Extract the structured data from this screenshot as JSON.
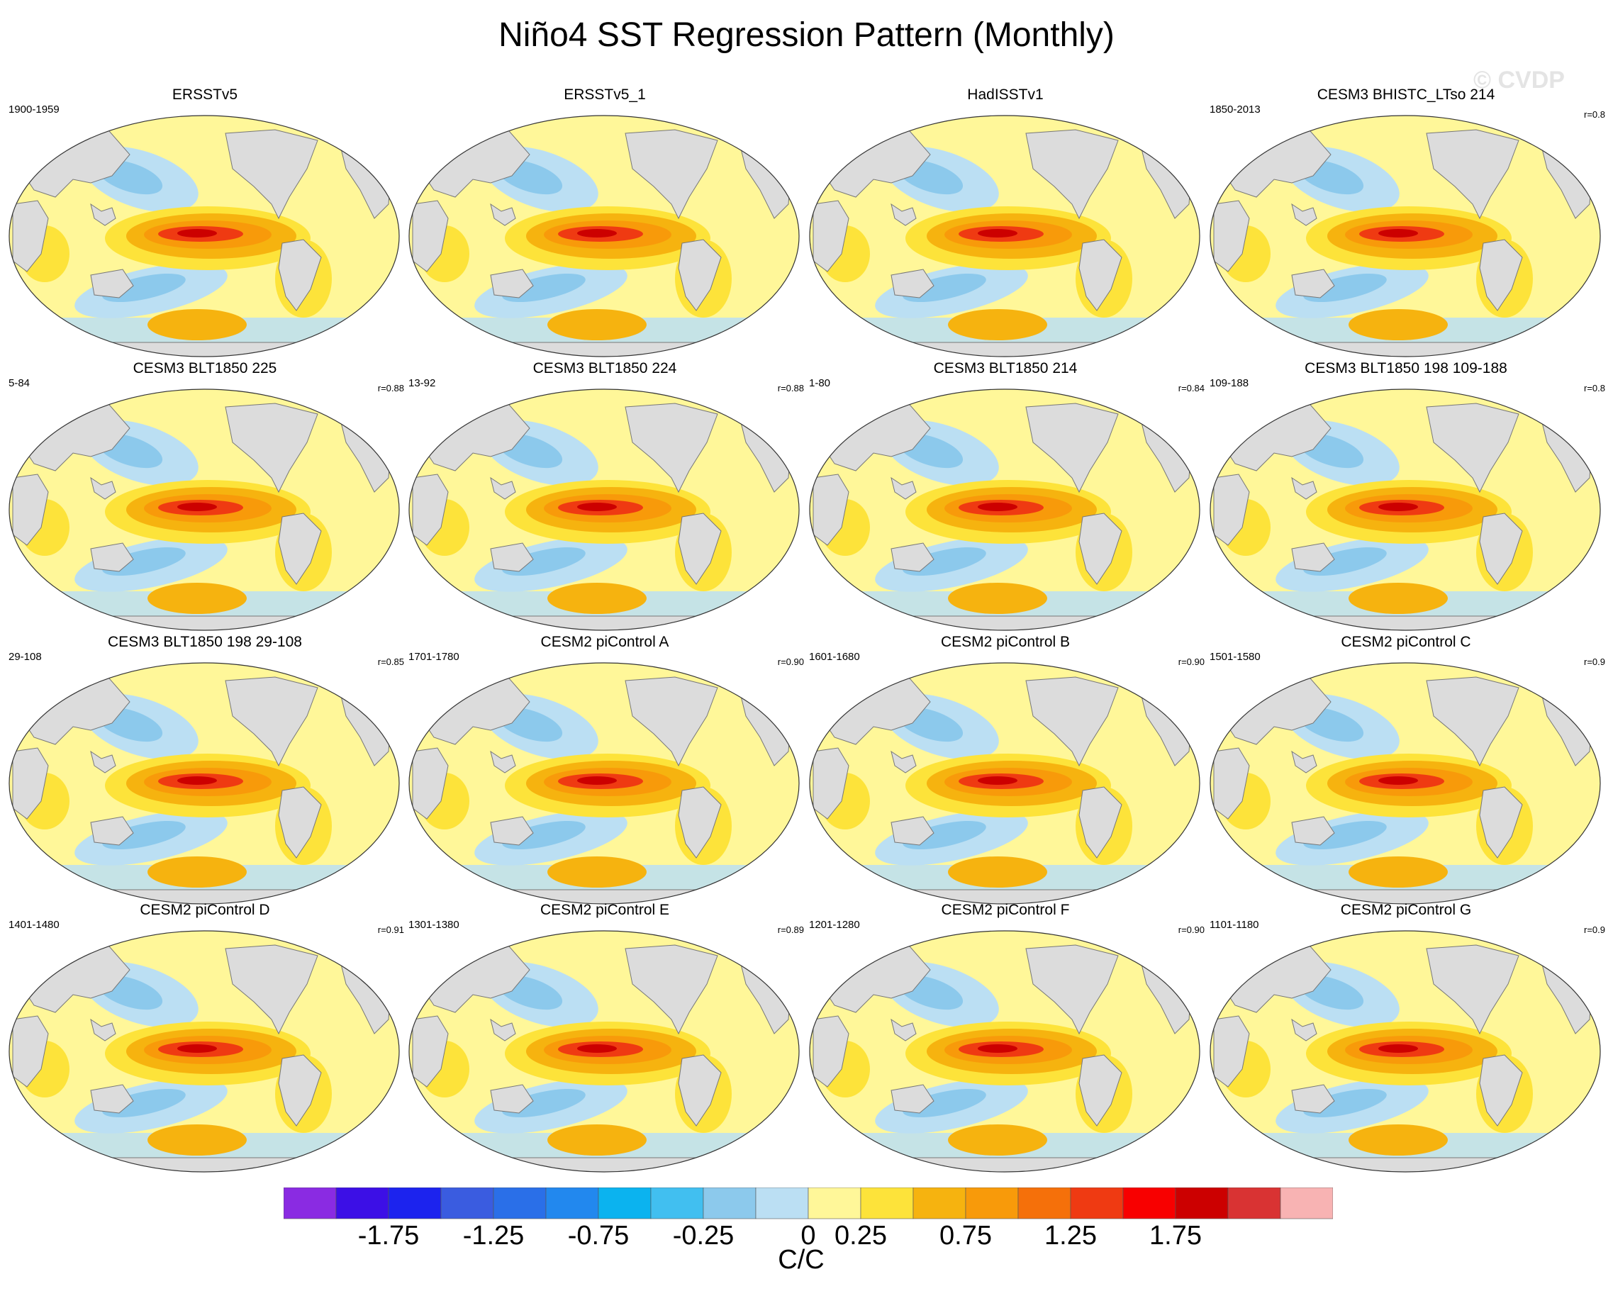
{
  "title": "Niño4 SST Regression Pattern (Monthly)",
  "watermark": "© CVDP",
  "chart_data": {
    "type": "heatmap",
    "projection": "Robinson global map, Pacific-centered",
    "variable": "SST regression onto Niño4 index",
    "units": "C/C",
    "panels": [
      {
        "title": "ERSSTv5",
        "period": "1900-1959",
        "r": ""
      },
      {
        "title": "ERSSTv5_1",
        "period": "",
        "r": ""
      },
      {
        "title": "HadISSTv1",
        "period": "",
        "r": ""
      },
      {
        "title": "CESM3 BHISTC_LTso 214",
        "period": "1850-2013",
        "r": "r=0.8"
      },
      {
        "title": "CESM3 BLT1850 225",
        "period": "5-84",
        "r": "r=0.88"
      },
      {
        "title": "CESM3 BLT1850 224",
        "period": "13-92",
        "r": "r=0.88"
      },
      {
        "title": "CESM3 BLT1850 214",
        "period": "1-80",
        "r": "r=0.84"
      },
      {
        "title": "CESM3 BLT1850 198 109-188",
        "period": "109-188",
        "r": "r=0.8"
      },
      {
        "title": "CESM3 BLT1850 198 29-108",
        "period": "29-108",
        "r": "r=0.85"
      },
      {
        "title": "CESM2 piControl A",
        "period": "1701-1780",
        "r": "r=0.90"
      },
      {
        "title": "CESM2 piControl B",
        "period": "1601-1680",
        "r": "r=0.90"
      },
      {
        "title": "CESM2 piControl C",
        "period": "1501-1580",
        "r": "r=0.9"
      },
      {
        "title": "CESM2 piControl D",
        "period": "1401-1480",
        "r": "r=0.91"
      },
      {
        "title": "CESM2 piControl E",
        "period": "1301-1380",
        "r": "r=0.89"
      },
      {
        "title": "CESM2 piControl F",
        "period": "1201-1280",
        "r": "r=0.90"
      },
      {
        "title": "CESM2 piControl G",
        "period": "1101-1180",
        "r": "r=0.9"
      }
    ],
    "colorbar": {
      "levels": [
        -2.0,
        -1.75,
        -1.5,
        -1.25,
        -1.0,
        -0.75,
        -0.5,
        -0.25,
        0,
        0.25,
        0.5,
        0.75,
        1.0,
        1.25,
        1.5,
        1.75,
        2.0
      ],
      "colors": [
        "#8a2be2",
        "#3c0fe6",
        "#1c23ee",
        "#3a5ce0",
        "#2a6fe8",
        "#2288ee",
        "#0bb3ef",
        "#41bff0",
        "#8cc9ec",
        "#bbdff3",
        "#fff799",
        "#fde33a",
        "#f6b30f",
        "#f89a0a",
        "#f5700a",
        "#ef3a12",
        "#f80000",
        "#cc0000",
        "#d93333",
        "#f8b3b3"
      ],
      "labels": [
        "-1.75",
        "-1.25",
        "-0.75",
        "-0.25",
        "0",
        "0.25",
        "0.75",
        "1.25",
        "1.75"
      ],
      "units": "C/C"
    }
  }
}
